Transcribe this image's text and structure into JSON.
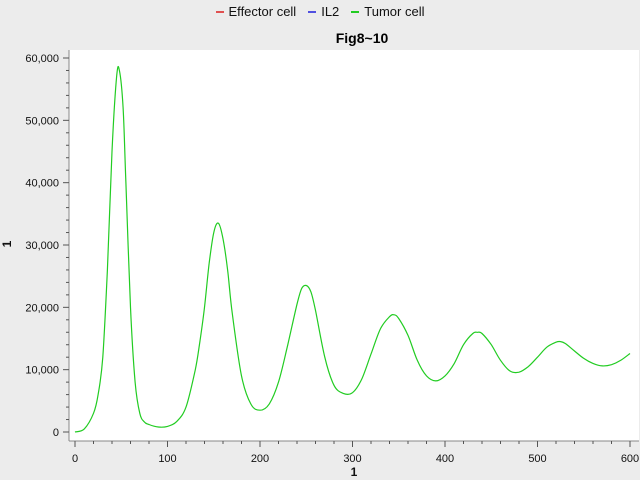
{
  "chart_data": {
    "type": "line",
    "title": "Fig8~10",
    "xlabel": "1",
    "ylabel": "1",
    "xlim": [
      0,
      600
    ],
    "ylim": [
      0,
      60000
    ],
    "x_ticks": [
      0,
      100,
      200,
      300,
      400,
      500,
      600
    ],
    "x_tick_labels": [
      "0",
      "100",
      "200",
      "300",
      "400",
      "500",
      "600"
    ],
    "y_ticks": [
      0,
      10000,
      20000,
      30000,
      40000,
      50000,
      60000
    ],
    "y_tick_labels": [
      "0",
      "10,000",
      "20,000",
      "30,000",
      "40,000",
      "50,000",
      "60,000"
    ],
    "grid": false,
    "legend_position": "top-center",
    "legend": [
      {
        "name": "Effector cell",
        "color": "#e05050"
      },
      {
        "name": "IL2",
        "color": "#5050e0"
      },
      {
        "name": "Tumor cell",
        "color": "#22cc22"
      }
    ],
    "series": [
      {
        "name": "Tumor cell",
        "color": "#22cc22",
        "x": [
          0,
          10,
          20,
          25,
          30,
          35,
          40,
          45,
          48,
          52,
          55,
          60,
          65,
          70,
          75,
          80,
          90,
          100,
          110,
          120,
          130,
          135,
          140,
          145,
          150,
          155,
          160,
          165,
          170,
          180,
          190,
          200,
          210,
          220,
          230,
          240,
          245,
          250,
          255,
          260,
          270,
          280,
          290,
          300,
          310,
          320,
          330,
          340,
          345,
          350,
          360,
          370,
          380,
          390,
          400,
          410,
          420,
          430,
          435,
          440,
          450,
          460,
          470,
          480,
          490,
          500,
          510,
          520,
          525,
          530,
          540,
          550,
          560,
          570,
          580,
          590,
          600
        ],
        "values": [
          0,
          500,
          3000,
          6000,
          12000,
          26000,
          45000,
          57000,
          58000,
          52000,
          40000,
          20000,
          8000,
          3000,
          1600,
          1200,
          800,
          900,
          1700,
          4000,
          10000,
          14500,
          20000,
          27000,
          32000,
          33500,
          31000,
          26000,
          19000,
          9000,
          4500,
          3500,
          4500,
          8000,
          14000,
          20500,
          23000,
          23500,
          22500,
          19500,
          12000,
          7500,
          6200,
          6300,
          8500,
          12500,
          16500,
          18500,
          18800,
          18200,
          15500,
          11500,
          9000,
          8200,
          9000,
          11000,
          14000,
          15800,
          16000,
          15800,
          14000,
          11500,
          9800,
          9600,
          10500,
          12000,
          13600,
          14400,
          14500,
          14200,
          13000,
          11800,
          11000,
          10600,
          10800,
          11500,
          12600
        ]
      }
    ]
  }
}
